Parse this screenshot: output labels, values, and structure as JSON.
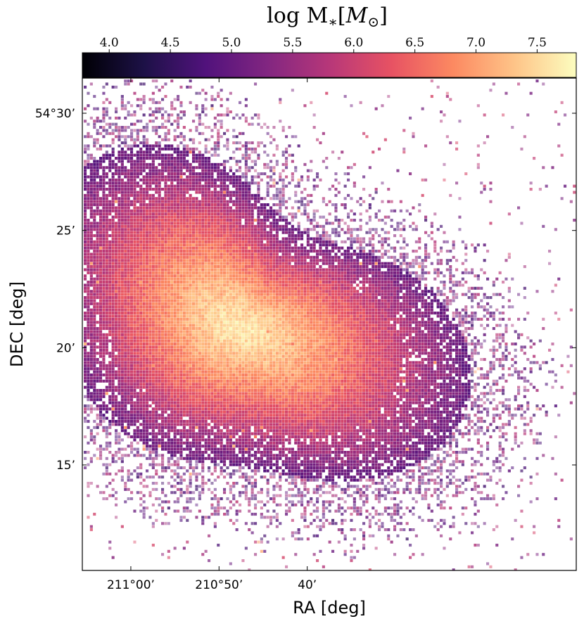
{
  "chart_data": {
    "type": "heatmap",
    "title": "",
    "colorbar": {
      "label": "log M_*[M_⊙]",
      "label_parts": {
        "base": "log M",
        "subscript": "∗",
        "bracket_open": "[",
        "unit": "M",
        "unit_subscript": "⊙",
        "bracket_close": "]"
      },
      "colormap": "magma",
      "range": [
        3.78,
        7.82
      ],
      "ticks": [
        4.0,
        4.5,
        5.0,
        5.5,
        6.0,
        6.5,
        7.0,
        7.5
      ],
      "tick_labels": [
        "4.0",
        "4.5",
        "5.0",
        "5.5",
        "6.0",
        "6.5",
        "7.0",
        "7.5"
      ],
      "placement": "top"
    },
    "xaxis": {
      "label": "RA [deg]",
      "range_arcmin": [
        -65.5,
        -9.5
      ],
      "inverted": true,
      "ticks": [
        {
          "value": -60,
          "label": "211°00’"
        },
        {
          "value": -50,
          "label": "210°50’"
        },
        {
          "value": -40,
          "label": "40’"
        }
      ]
    },
    "yaxis": {
      "label": "DEC [deg]",
      "range_arcmin": [
        10.5,
        31.5
      ],
      "ticks": [
        {
          "value": 30,
          "label": "54°30’"
        },
        {
          "value": 25,
          "label": "25’"
        },
        {
          "value": 20,
          "label": "20’"
        },
        {
          "value": 15,
          "label": "15’"
        }
      ]
    },
    "galaxy": {
      "center_ra_arcmin": -47.9,
      "center_dec_arcmin": 20.9,
      "peak_log_mass": 7.7,
      "disk_edge_log_mass": 5.0
    },
    "grid": false,
    "legend": "none"
  },
  "colors": {
    "cmap_stops": [
      "#000004",
      "#1d1147",
      "#51127c",
      "#822681",
      "#b73779",
      "#e75263",
      "#fc8961",
      "#fec488",
      "#fcfdbf"
    ],
    "axis": "#000000",
    "background": "#ffffff"
  }
}
